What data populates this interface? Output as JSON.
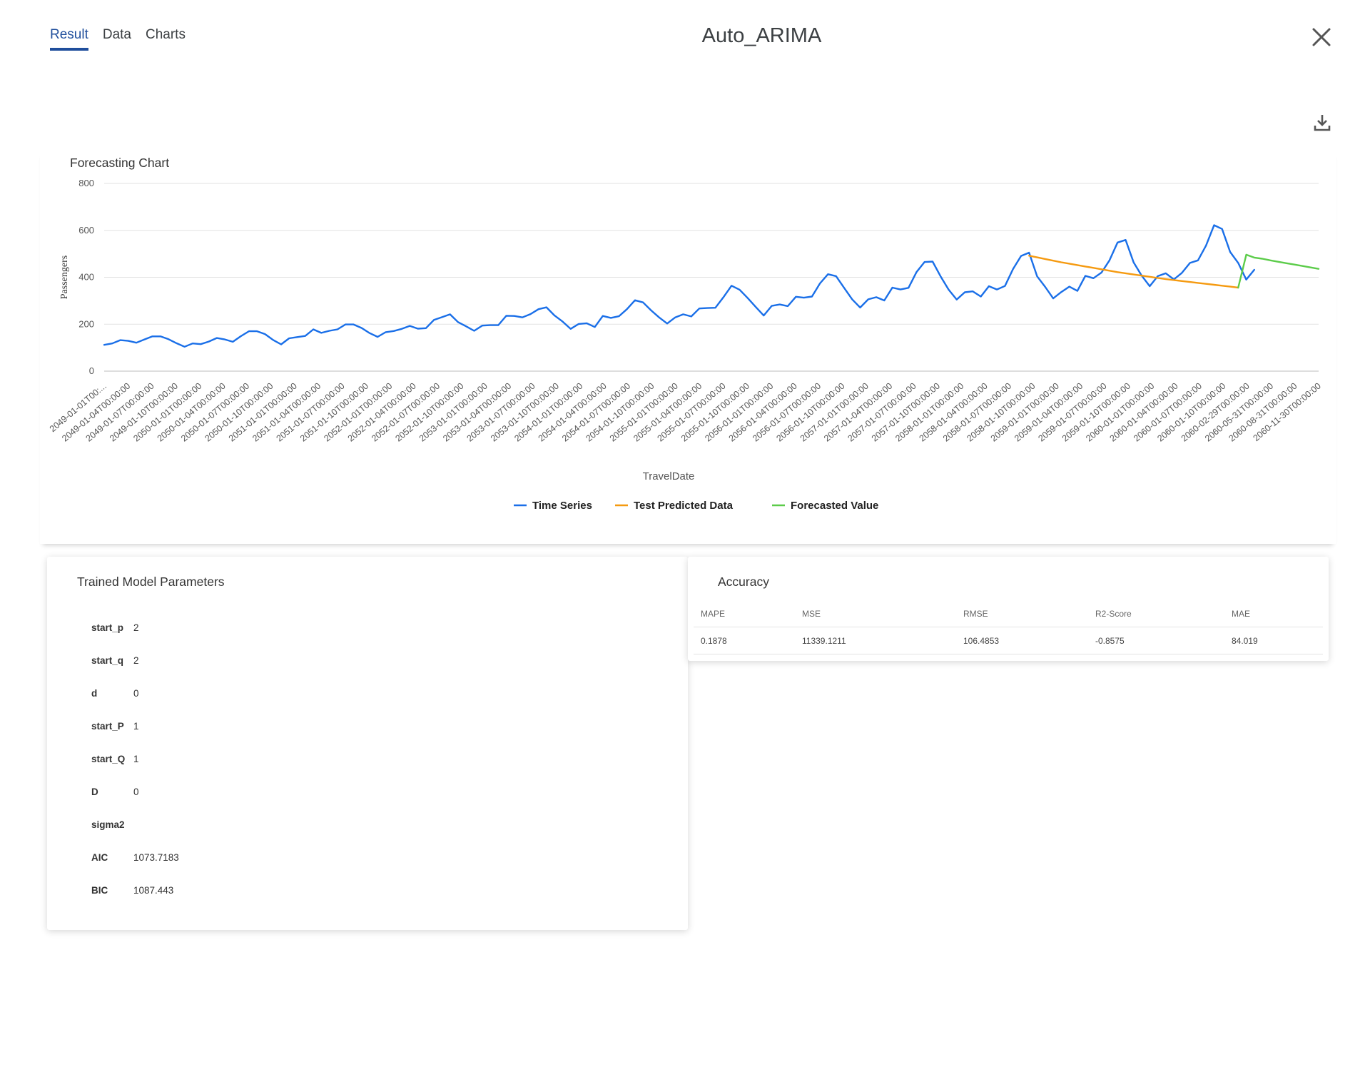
{
  "tabs": [
    {
      "label": "Result",
      "active": true
    },
    {
      "label": "Data",
      "active": false
    },
    {
      "label": "Charts",
      "active": false
    }
  ],
  "title": "Auto_ARIMA",
  "icons": {
    "close": "close-icon",
    "download": "download-icon"
  },
  "colors": {
    "accent": "#1f4e9c",
    "time_series": "#1a6fe8",
    "test_predicted": "#f59a10",
    "forecasted": "#5ccc4a"
  },
  "chart_data": {
    "type": "line",
    "title": "Forecasting Chart",
    "xlabel": "TravelDate",
    "ylabel": "Passengers",
    "ylim": [
      0,
      800
    ],
    "yticks": [
      0,
      200,
      400,
      600,
      800
    ],
    "grid": true,
    "legend_position": "bottom-center",
    "x_tick_labels": [
      "2049-01-01T00:...",
      "2049-01-04T00:00:00",
      "2049-01-07T00:00:00",
      "2049-01-10T00:00:00",
      "2050-01-01T00:00:00",
      "2050-01-04T00:00:00",
      "2050-01-07T00:00:00",
      "2050-01-10T00:00:00",
      "2051-01-01T00:00:00",
      "2051-01-04T00:00:00",
      "2051-01-07T00:00:00",
      "2051-01-10T00:00:00",
      "2052-01-01T00:00:00",
      "2052-01-04T00:00:00",
      "2052-01-07T00:00:00",
      "2052-01-10T00:00:00",
      "2053-01-01T00:00:00",
      "2053-01-04T00:00:00",
      "2053-01-07T00:00:00",
      "2053-01-10T00:00:00",
      "2054-01-01T00:00:00",
      "2054-01-04T00:00:00",
      "2054-01-07T00:00:00",
      "2054-01-10T00:00:00",
      "2055-01-01T00:00:00",
      "2055-01-04T00:00:00",
      "2055-01-07T00:00:00",
      "2055-01-10T00:00:00",
      "2056-01-01T00:00:00",
      "2056-01-04T00:00:00",
      "2056-01-07T00:00:00",
      "2056-01-10T00:00:00",
      "2057-01-01T00:00:00",
      "2057-01-04T00:00:00",
      "2057-01-07T00:00:00",
      "2057-01-10T00:00:00",
      "2058-01-01T00:00:00",
      "2058-01-04T00:00:00",
      "2058-01-07T00:00:00",
      "2058-01-10T00:00:00",
      "2059-01-01T00:00:00",
      "2059-01-04T00:00:00",
      "2059-01-07T00:00:00",
      "2059-01-10T00:00:00",
      "2060-01-01T00:00:00",
      "2060-01-04T00:00:00",
      "2060-01-07T00:00:00",
      "2060-01-10T00:00:00",
      "2060-02-29T00:00:00",
      "2060-05-31T00:00:00",
      "2060-08-31T00:00:00",
      "2060-11-30T00:00:00"
    ],
    "series": [
      {
        "name": "Time Series",
        "color": "#1a6fe8",
        "start_index": 0,
        "values": [
          112,
          118,
          132,
          129,
          121,
          135,
          148,
          148,
          136,
          119,
          104,
          118,
          115,
          126,
          141,
          135,
          125,
          149,
          170,
          170,
          158,
          133,
          114,
          140,
          145,
          150,
          178,
          163,
          172,
          178,
          199,
          199,
          184,
          162,
          146,
          166,
          171,
          180,
          193,
          181,
          183,
          218,
          230,
          242,
          209,
          191,
          172,
          194,
          196,
          196,
          236,
          235,
          229,
          243,
          264,
          272,
          237,
          211,
          180,
          201,
          204,
          188,
          235,
          227,
          234,
          264,
          302,
          293,
          259,
          229,
          203,
          229,
          242,
          233,
          267,
          269,
          270,
          315,
          364,
          347,
          312,
          274,
          237,
          278,
          284,
          277,
          317,
          313,
          318,
          374,
          413,
          405,
          355,
          306,
          271,
          306,
          315,
          301,
          356,
          348,
          355,
          422,
          465,
          467,
          404,
          347,
          305,
          336,
          340,
          318,
          362,
          348,
          363,
          435,
          491,
          505,
          404,
          359,
          310,
          337,
          360,
          342,
          406,
          396,
          420,
          472,
          548,
          559,
          463,
          407,
          362,
          405,
          417,
          391,
          419,
          461,
          472,
          535,
          622,
          606,
          508,
          461,
          390,
          432
        ]
      },
      {
        "name": "Test Predicted Data",
        "color": "#f59a10",
        "start_index": 115,
        "values": [
          492,
          485,
          478,
          471,
          464,
          458,
          452,
          446,
          440,
          434,
          428,
          422,
          417,
          412,
          407,
          402,
          397,
          392,
          388,
          384,
          380,
          376,
          372,
          368,
          364,
          360,
          356
        ]
      },
      {
        "name": "Forecasted Value",
        "color": "#5ccc4a",
        "start_index": 141,
        "values": [
          356,
          496,
          484,
          479,
          472,
          466,
          460,
          454,
          448,
          442,
          436
        ]
      }
    ]
  },
  "params": {
    "title": "Trained Model Parameters",
    "rows": [
      {
        "name": "start_p",
        "value": "2"
      },
      {
        "name": "start_q",
        "value": "2"
      },
      {
        "name": "d",
        "value": "0"
      },
      {
        "name": "start_P",
        "value": "1"
      },
      {
        "name": "start_Q",
        "value": "1"
      },
      {
        "name": "D",
        "value": "0"
      },
      {
        "name": "sigma2",
        "value": ""
      },
      {
        "name": "AIC",
        "value": "1073.7183"
      },
      {
        "name": "BIC",
        "value": "1087.443"
      }
    ]
  },
  "accuracy": {
    "title": "Accuracy",
    "headers": [
      "MAPE",
      "MSE",
      "RMSE",
      "R2-Score",
      "MAE"
    ],
    "values": [
      "0.1878",
      "11339.1211",
      "106.4853",
      "-0.8575",
      "84.019"
    ]
  }
}
